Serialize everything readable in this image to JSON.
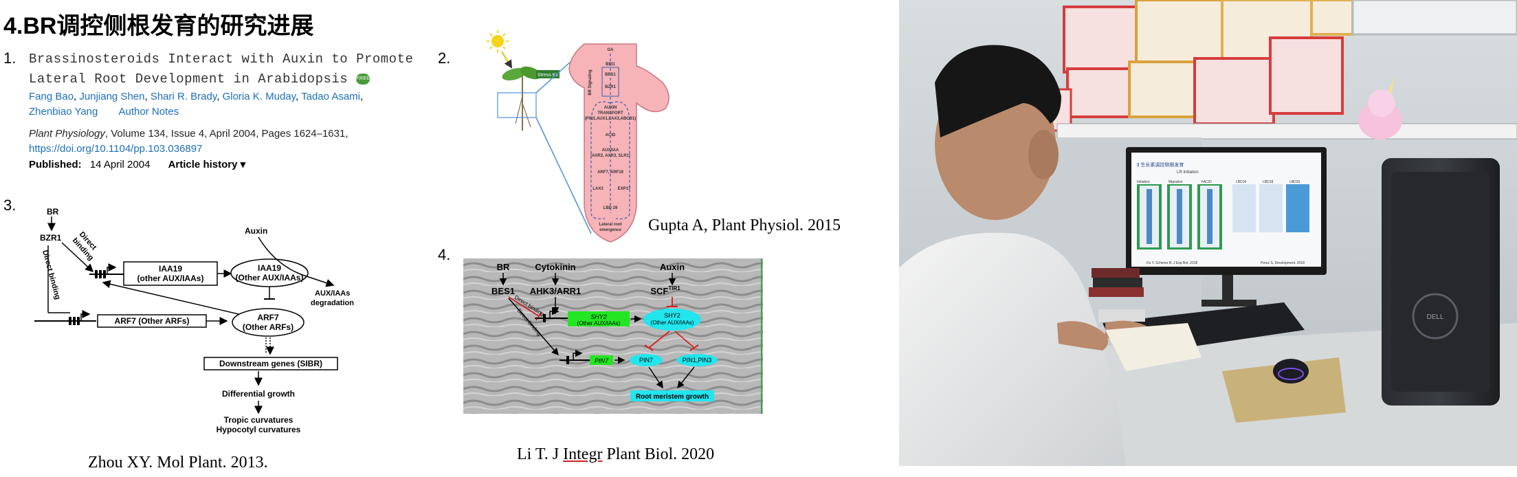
{
  "page_title": "4.BR调控侧根发育的研究进展",
  "ref1": {
    "number": "1.",
    "title_line1": "Brassinosteroids Interact with Auxin to Promote",
    "title_line2": "Lateral Root Development in Arabidopsis",
    "free_badge": "FREE",
    "authors_line1": [
      "Fang Bao",
      "Junjiang Shen",
      "Shari R. Brady",
      "Gloria K. Muday",
      "Tadao Asami"
    ],
    "authors_line2": [
      "Zhenbiao Yang"
    ],
    "author_notes": "Author Notes",
    "journal_name": "Plant Physiology",
    "journal_details": ", Volume 134, Issue 4, April 2004, Pages 1624–1631,",
    "doi": "https://doi.org/10.1104/pp.103.036897",
    "published_label": "Published:",
    "published_date": "14 April 2004",
    "history_label": "Article history ▾"
  },
  "fig2": {
    "number": "2.",
    "caption": "Gupta A, Plant Physiol. 2015",
    "labels": {
      "sun_label": "Stress Kit",
      "box1": "BRI1",
      "box2": "BES1",
      "box3": "BZR1",
      "side": "BR Signaling",
      "top": "GA",
      "auxin": "AUXIN\nTRANSPORT\n(PIN1,AUX1,LAX3,ABCB1)",
      "acid": "ACID",
      "auxiaa": "AUX/IAA\n(AXR2, AXR3, SLR1)",
      "arf": "ARF7, ARF19",
      "lax3": "LAX3",
      "exp17": "EXP17",
      "lbd": "LBD 29",
      "emerge": "Lateral root\nemergence"
    }
  },
  "fig3": {
    "number": "3.",
    "caption": "Zhou XY. Mol Plant. 2013.",
    "labels": {
      "br": "BR",
      "bzr1": "BZR1",
      "direct_binding_a": "Direct",
      "direct_binding_b": "binding",
      "direct_binding_vert": "Direct binding",
      "iaa19_box": "IAA19",
      "iaa19_box_sub": "(other AUX/IAAs)",
      "iaa19_ellipse": "IAA19",
      "iaa19_ellipse_sub": "(Other AUX/IAAs)",
      "auxin": "Auxin",
      "degradation_a": "AUX/IAAs",
      "degradation_b": "degradation",
      "arf7_box": "ARF7 (Other ARFs)",
      "arf7_ellipse": "ARF7",
      "arf7_ellipse_sub": "(Other ARFs)",
      "downstream": "Downstream genes (SIBR)",
      "diff_growth": "Differential growth",
      "tropic": "Tropic curvatures",
      "hypocotyl": "Hypocotyl curvatures"
    }
  },
  "fig4": {
    "number": "4.",
    "caption_prefix": "Li T. J ",
    "caption_underlined": "Integr",
    "caption_suffix": " Plant Biol. 2020",
    "labels": {
      "br": "BR",
      "cytokinin": "Cytokinin",
      "auxin": "Auxin",
      "bes1": "BES1",
      "ahk3": "AHK3/ARR1",
      "scf": "SCF",
      "scf_sup": "TIR1",
      "direct1": "Direct binding",
      "direct2": "Direct binding",
      "shy2_gene": "SHY2",
      "shy2_gene_sub": "(Other AUX/IAAs)",
      "shy2_prot": "SHY2",
      "shy2_prot_sub": "(Other AUX/IAAs)",
      "pin7_gene": "PIN7",
      "pin7_prot": "PIN7",
      "pin13": "PIN1,PIN3",
      "growth": "Root meristem growth"
    }
  },
  "photo": {
    "screen_title": "Ⅱ 生长素调控侧根发育",
    "screen_sub": "LR Initiation",
    "screen_cols": [
      "Initiation",
      "Migration",
      "FAC/D",
      "LBD16",
      "LBD18",
      "LBD29"
    ],
    "screen_foot_left": "Du Y, Scheres B. J Exp Bot. 2018",
    "screen_foot_right": "Perez S, Development. 2018",
    "brand": "DELL"
  },
  "colors": {
    "link": "#1a6ebf",
    "green_box": "#22e622",
    "cyan_box": "#22e5ee",
    "root_pink": "#f6b3b8"
  }
}
